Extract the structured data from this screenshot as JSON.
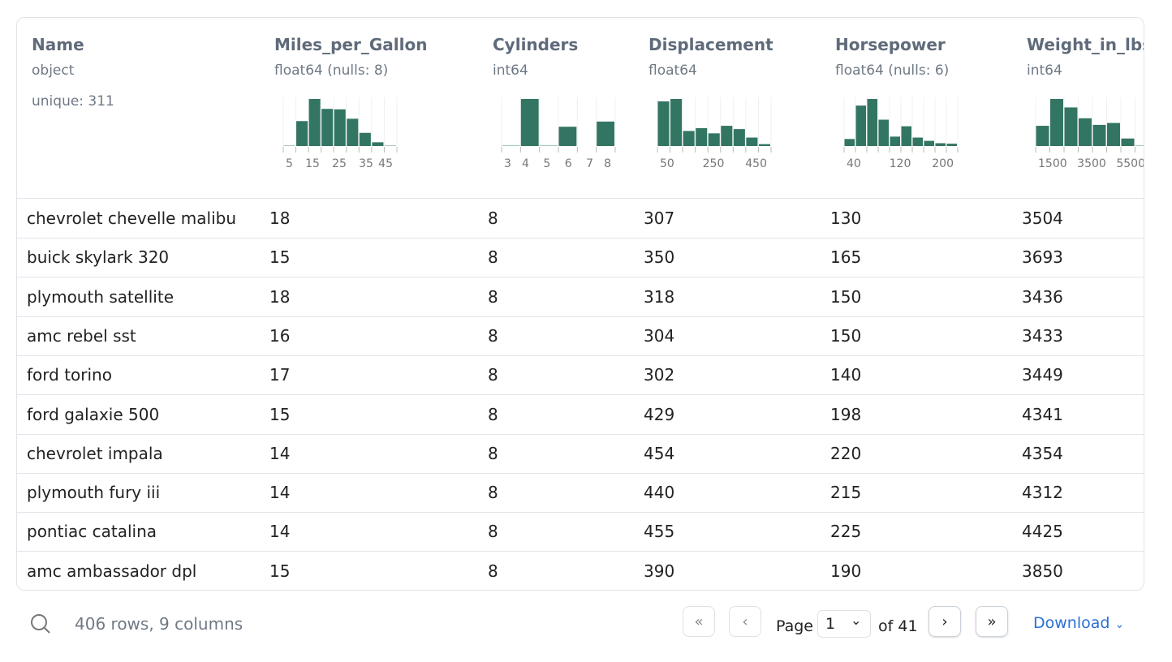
{
  "columns": [
    {
      "name": "Name",
      "type": "object",
      "unique": "unique: 311"
    },
    {
      "name": "Miles_per_Gallon",
      "type": "float64 (nulls: 8)",
      "hist": [
        1,
        53,
        100,
        79,
        78,
        58,
        28,
        8,
        1
      ],
      "ticks": [
        "5",
        "15",
        "25",
        "35",
        "45"
      ]
    },
    {
      "name": "Cylinders",
      "type": "int64",
      "hist": [
        2,
        100,
        2,
        41,
        0,
        52
      ],
      "ticks": [
        "3",
        "4",
        "5",
        "6",
        "7",
        "8"
      ]
    },
    {
      "name": "Displacement",
      "type": "float64",
      "hist": [
        95,
        100,
        32,
        38,
        27,
        43,
        36,
        18,
        4
      ],
      "ticks": [
        "50",
        "250",
        "450"
      ]
    },
    {
      "name": "Horsepower",
      "type": "float64 (nulls: 6)",
      "hist": [
        15,
        86,
        100,
        56,
        20,
        42,
        18,
        11,
        6,
        5
      ],
      "ticks": [
        "40",
        "120",
        "200"
      ]
    },
    {
      "name": "Weight_in_lbs",
      "type": "int64",
      "hist": [
        43,
        100,
        82,
        59,
        45,
        49,
        16,
        2
      ],
      "ticks": [
        "1500",
        "3500",
        "5500"
      ]
    }
  ],
  "rows": [
    [
      "chevrolet chevelle malibu",
      "18",
      "8",
      "307",
      "130",
      "3504"
    ],
    [
      "buick skylark 320",
      "15",
      "8",
      "350",
      "165",
      "3693"
    ],
    [
      "plymouth satellite",
      "18",
      "8",
      "318",
      "150",
      "3436"
    ],
    [
      "amc rebel sst",
      "16",
      "8",
      "304",
      "150",
      "3433"
    ],
    [
      "ford torino",
      "17",
      "8",
      "302",
      "140",
      "3449"
    ],
    [
      "ford galaxie 500",
      "15",
      "8",
      "429",
      "198",
      "4341"
    ],
    [
      "chevrolet impala",
      "14",
      "8",
      "454",
      "220",
      "4354"
    ],
    [
      "plymouth fury iii",
      "14",
      "8",
      "440",
      "215",
      "4312"
    ],
    [
      "pontiac catalina",
      "14",
      "8",
      "455",
      "225",
      "4425"
    ],
    [
      "amc ambassador dpl",
      "15",
      "8",
      "390",
      "190",
      "3850"
    ]
  ],
  "footer": {
    "summary": "406 rows, 9 columns",
    "page_label": "Page",
    "page_value": "1",
    "of_label": "of 41",
    "download": "Download"
  },
  "colors": {
    "bar": "#337563",
    "accent": "#2b6fd6"
  }
}
